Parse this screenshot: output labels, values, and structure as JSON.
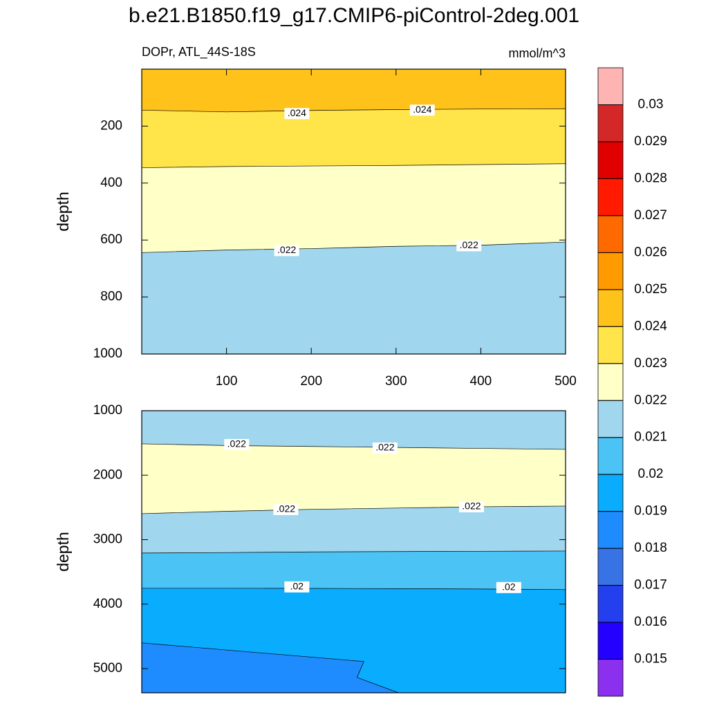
{
  "chart_data": {
    "type": "contour",
    "title": "b.e21.B1850.f19_g17.CMIP6-piControl-2deg.001",
    "subtitle": "DOPr, ATL_44S-18S",
    "units": "mmol/m^3",
    "panels": [
      {
        "ylabel": "depth",
        "xlim": [
          0,
          500
        ],
        "ylim": [
          0,
          1000
        ],
        "xticks": [
          100,
          200,
          300,
          400,
          500
        ],
        "yticks": [
          200,
          400,
          600,
          800,
          1000
        ],
        "background": "#ffc21a",
        "bands": [
          {
            "color": "#ffe44a",
            "x": [
              0,
              100,
              200,
              300,
              400,
              500
            ],
            "depth": [
              144,
              150,
              145,
              142,
              140,
              139
            ]
          },
          {
            "color": "#ffffc8",
            "x": [
              0,
              100,
              200,
              300,
              400,
              500
            ],
            "depth": [
              346,
              342,
              340,
              338,
              335,
              332
            ]
          },
          {
            "color": "#a0d6ee",
            "x": [
              0,
              100,
              200,
              300,
              400,
              500
            ],
            "depth": [
              644,
              635,
              630,
              622,
              618,
              607
            ]
          }
        ],
        "contour_labels": [
          {
            "label": ".024",
            "x": 183,
            "depth": 156
          },
          {
            "label": ".024",
            "x": 331,
            "depth": 144
          },
          {
            "label": ".022",
            "x": 171,
            "depth": 637
          },
          {
            "label": ".022",
            "x": 386,
            "depth": 620
          }
        ]
      },
      {
        "ylabel": "depth",
        "xlim": [
          0,
          500
        ],
        "ylim": [
          1000,
          5375
        ],
        "yticks": [
          1000,
          2000,
          3000,
          4000,
          5000
        ],
        "background": "#a0d6ee",
        "bands": [
          {
            "color": "#ffffc8",
            "x": [
              0,
              100,
              200,
              300,
              400,
              500
            ],
            "depth": [
              1514,
              1540,
              1555,
              1570,
              1585,
              1600
            ]
          },
          {
            "color": "#a0d6ee",
            "x": [
              0,
              100,
              200,
              300,
              400,
              500
            ],
            "depth": [
              2597,
              2560,
              2530,
              2510,
              2490,
              2479
            ]
          },
          {
            "color": "#4cc3f5",
            "x": [
              0,
              100,
              200,
              300,
              400,
              500
            ],
            "depth": [
              3208,
              3200,
              3190,
              3185,
              3180,
              3176
            ]
          },
          {
            "color": "#0aadfe",
            "x": [
              0,
              100,
              200,
              300,
              400,
              500
            ],
            "depth": [
              3754,
              3754,
              3756,
              3760,
              3765,
              3775
            ]
          },
          {
            "color": "#1e8cff",
            "x": [
              0,
              262,
              254,
              303
            ],
            "depth": [
              4601,
              4890,
              5137,
              5375
            ]
          }
        ],
        "contour_labels": [
          {
            "label": ".022",
            "x": 112,
            "depth": 1525
          },
          {
            "label": ".022",
            "x": 287,
            "depth": 1579
          },
          {
            "label": ".022",
            "x": 170,
            "depth": 2533
          },
          {
            "label": ".022",
            "x": 389,
            "depth": 2490
          },
          {
            "label": ".02",
            "x": 183,
            "depth": 3733
          },
          {
            "label": ".02",
            "x": 433,
            "depth": 3743
          }
        ]
      }
    ],
    "colorbar": {
      "levels": [
        0.015,
        0.016,
        0.017,
        0.018,
        0.019,
        0.02,
        0.021,
        0.022,
        0.023,
        0.024,
        0.025,
        0.026,
        0.027,
        0.028,
        0.029,
        0.03
      ],
      "colors": [
        "#8c30f0",
        "#2300ff",
        "#2440ee",
        "#3873e6",
        "#1e8cff",
        "#0aadfe",
        "#4cc3f5",
        "#a0d6ee",
        "#ffffc8",
        "#ffe44a",
        "#ffc21a",
        "#ff9a00",
        "#ff6a00",
        "#ff1a00",
        "#e00000",
        "#d42828",
        "#ffb4b4"
      ]
    }
  }
}
